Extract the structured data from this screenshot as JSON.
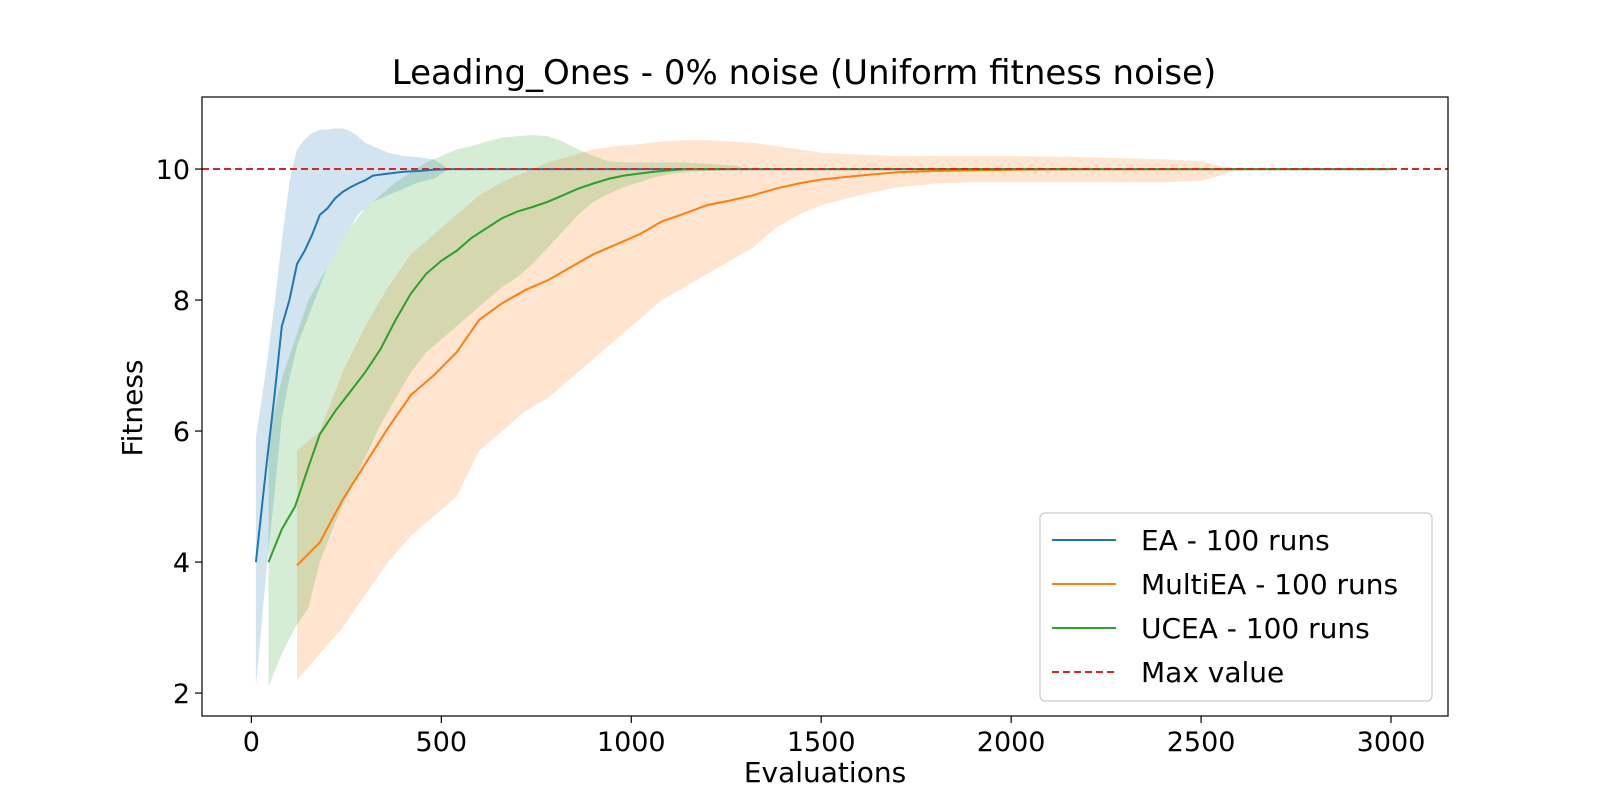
{
  "chart_data": {
    "type": "line",
    "title": "Leading_Ones - 0% noise (Uniform fitness noise)",
    "xlabel": "Evaluations",
    "ylabel": "Fitness",
    "xlim": [
      -130,
      3150
    ],
    "ylim": [
      1.65,
      11.1
    ],
    "xticks": [
      0,
      500,
      1000,
      1500,
      2000,
      2500,
      3000
    ],
    "yticks": [
      2,
      4,
      6,
      8,
      10
    ],
    "grid": false,
    "legend_position": "lower-right",
    "max_value": {
      "label": "Max value",
      "value": 10,
      "color": "#d62728"
    },
    "series": [
      {
        "name": "EA - 100 runs",
        "color": "#1f77b4",
        "x": [
          12,
          40,
          60,
          80,
          100,
          120,
          140,
          160,
          180,
          200,
          220,
          240,
          260,
          280,
          300,
          320,
          360,
          400,
          440,
          480,
          520,
          3000
        ],
        "mean": [
          4.0,
          5.5,
          6.5,
          7.6,
          8.0,
          8.55,
          8.75,
          9.0,
          9.3,
          9.4,
          9.55,
          9.65,
          9.72,
          9.78,
          9.83,
          9.9,
          9.93,
          9.96,
          9.97,
          9.99,
          10.0,
          10.0
        ],
        "upper": [
          5.9,
          7.0,
          7.9,
          8.9,
          9.8,
          10.3,
          10.45,
          10.55,
          10.6,
          10.6,
          10.62,
          10.62,
          10.58,
          10.5,
          10.4,
          10.35,
          10.25,
          10.2,
          10.18,
          10.15,
          10.0,
          10.0
        ],
        "lower": [
          2.1,
          3.9,
          5.0,
          6.2,
          6.8,
          7.3,
          7.6,
          7.9,
          8.2,
          8.5,
          8.7,
          8.9,
          9.1,
          9.3,
          9.4,
          9.5,
          9.6,
          9.7,
          9.8,
          9.85,
          10.0,
          10.0
        ]
      },
      {
        "name": "MultiEA - 100 runs",
        "color": "#ff7f0e",
        "x": [
          120,
          180,
          240,
          300,
          360,
          420,
          480,
          540,
          600,
          660,
          720,
          780,
          840,
          900,
          960,
          1020,
          1080,
          1140,
          1200,
          1260,
          1320,
          1380,
          1440,
          1500,
          1600,
          1700,
          1800,
          1900,
          2000,
          2200,
          2400,
          2500,
          2550,
          2600,
          3000
        ],
        "mean": [
          3.95,
          4.3,
          4.95,
          5.5,
          6.05,
          6.55,
          6.85,
          7.2,
          7.7,
          7.95,
          8.15,
          8.3,
          8.5,
          8.7,
          8.85,
          9.0,
          9.2,
          9.32,
          9.45,
          9.52,
          9.6,
          9.7,
          9.78,
          9.84,
          9.9,
          9.95,
          9.97,
          9.98,
          9.99,
          10.0,
          10.0,
          10.0,
          10.0,
          10.0,
          10.0
        ],
        "upper": [
          5.7,
          6.0,
          6.9,
          7.6,
          8.2,
          8.7,
          9.0,
          9.3,
          9.6,
          9.8,
          9.95,
          10.1,
          10.2,
          10.3,
          10.35,
          10.38,
          10.42,
          10.44,
          10.44,
          10.42,
          10.4,
          10.35,
          10.3,
          10.25,
          10.22,
          10.2,
          10.2,
          10.2,
          10.2,
          10.18,
          10.15,
          10.12,
          10.05,
          10.0,
          10.0
        ],
        "lower": [
          2.2,
          2.6,
          3.0,
          3.5,
          4.0,
          4.4,
          4.7,
          5.0,
          5.7,
          6.0,
          6.3,
          6.5,
          6.8,
          7.1,
          7.4,
          7.7,
          8.0,
          8.2,
          8.4,
          8.6,
          8.8,
          9.1,
          9.3,
          9.45,
          9.6,
          9.72,
          9.78,
          9.8,
          9.8,
          9.8,
          9.8,
          9.82,
          9.9,
          10.0,
          10.0
        ]
      },
      {
        "name": "UCEA - 100 runs",
        "color": "#2ca02c",
        "x": [
          45,
          80,
          115,
          150,
          180,
          220,
          260,
          300,
          340,
          380,
          420,
          460,
          500,
          540,
          580,
          620,
          660,
          700,
          740,
          780,
          820,
          860,
          900,
          940,
          980,
          1020,
          1060,
          1100,
          1140,
          1200,
          1280,
          1300,
          3000
        ],
        "mean": [
          4.0,
          4.5,
          4.85,
          5.45,
          5.95,
          6.3,
          6.6,
          6.9,
          7.25,
          7.7,
          8.1,
          8.4,
          8.6,
          8.75,
          8.95,
          9.1,
          9.25,
          9.35,
          9.42,
          9.5,
          9.6,
          9.7,
          9.78,
          9.85,
          9.9,
          9.93,
          9.96,
          9.98,
          10.0,
          10.0,
          10.0,
          10.0,
          10.0
        ],
        "upper": [
          5.9,
          6.8,
          7.4,
          8.0,
          8.3,
          8.7,
          9.1,
          9.4,
          9.6,
          9.8,
          9.95,
          10.1,
          10.2,
          10.3,
          10.35,
          10.42,
          10.48,
          10.5,
          10.52,
          10.5,
          10.42,
          10.3,
          10.2,
          10.12,
          10.1,
          10.1,
          10.1,
          10.1,
          10.1,
          10.08,
          10.05,
          10.0,
          10.0
        ],
        "lower": [
          2.1,
          2.6,
          3.0,
          3.3,
          4.0,
          4.6,
          5.1,
          5.6,
          6.1,
          6.5,
          6.9,
          7.2,
          7.4,
          7.6,
          7.8,
          8.0,
          8.2,
          8.35,
          8.55,
          8.8,
          9.05,
          9.3,
          9.5,
          9.62,
          9.72,
          9.8,
          9.87,
          9.92,
          9.95,
          9.97,
          9.99,
          10.0,
          10.0
        ]
      }
    ]
  }
}
